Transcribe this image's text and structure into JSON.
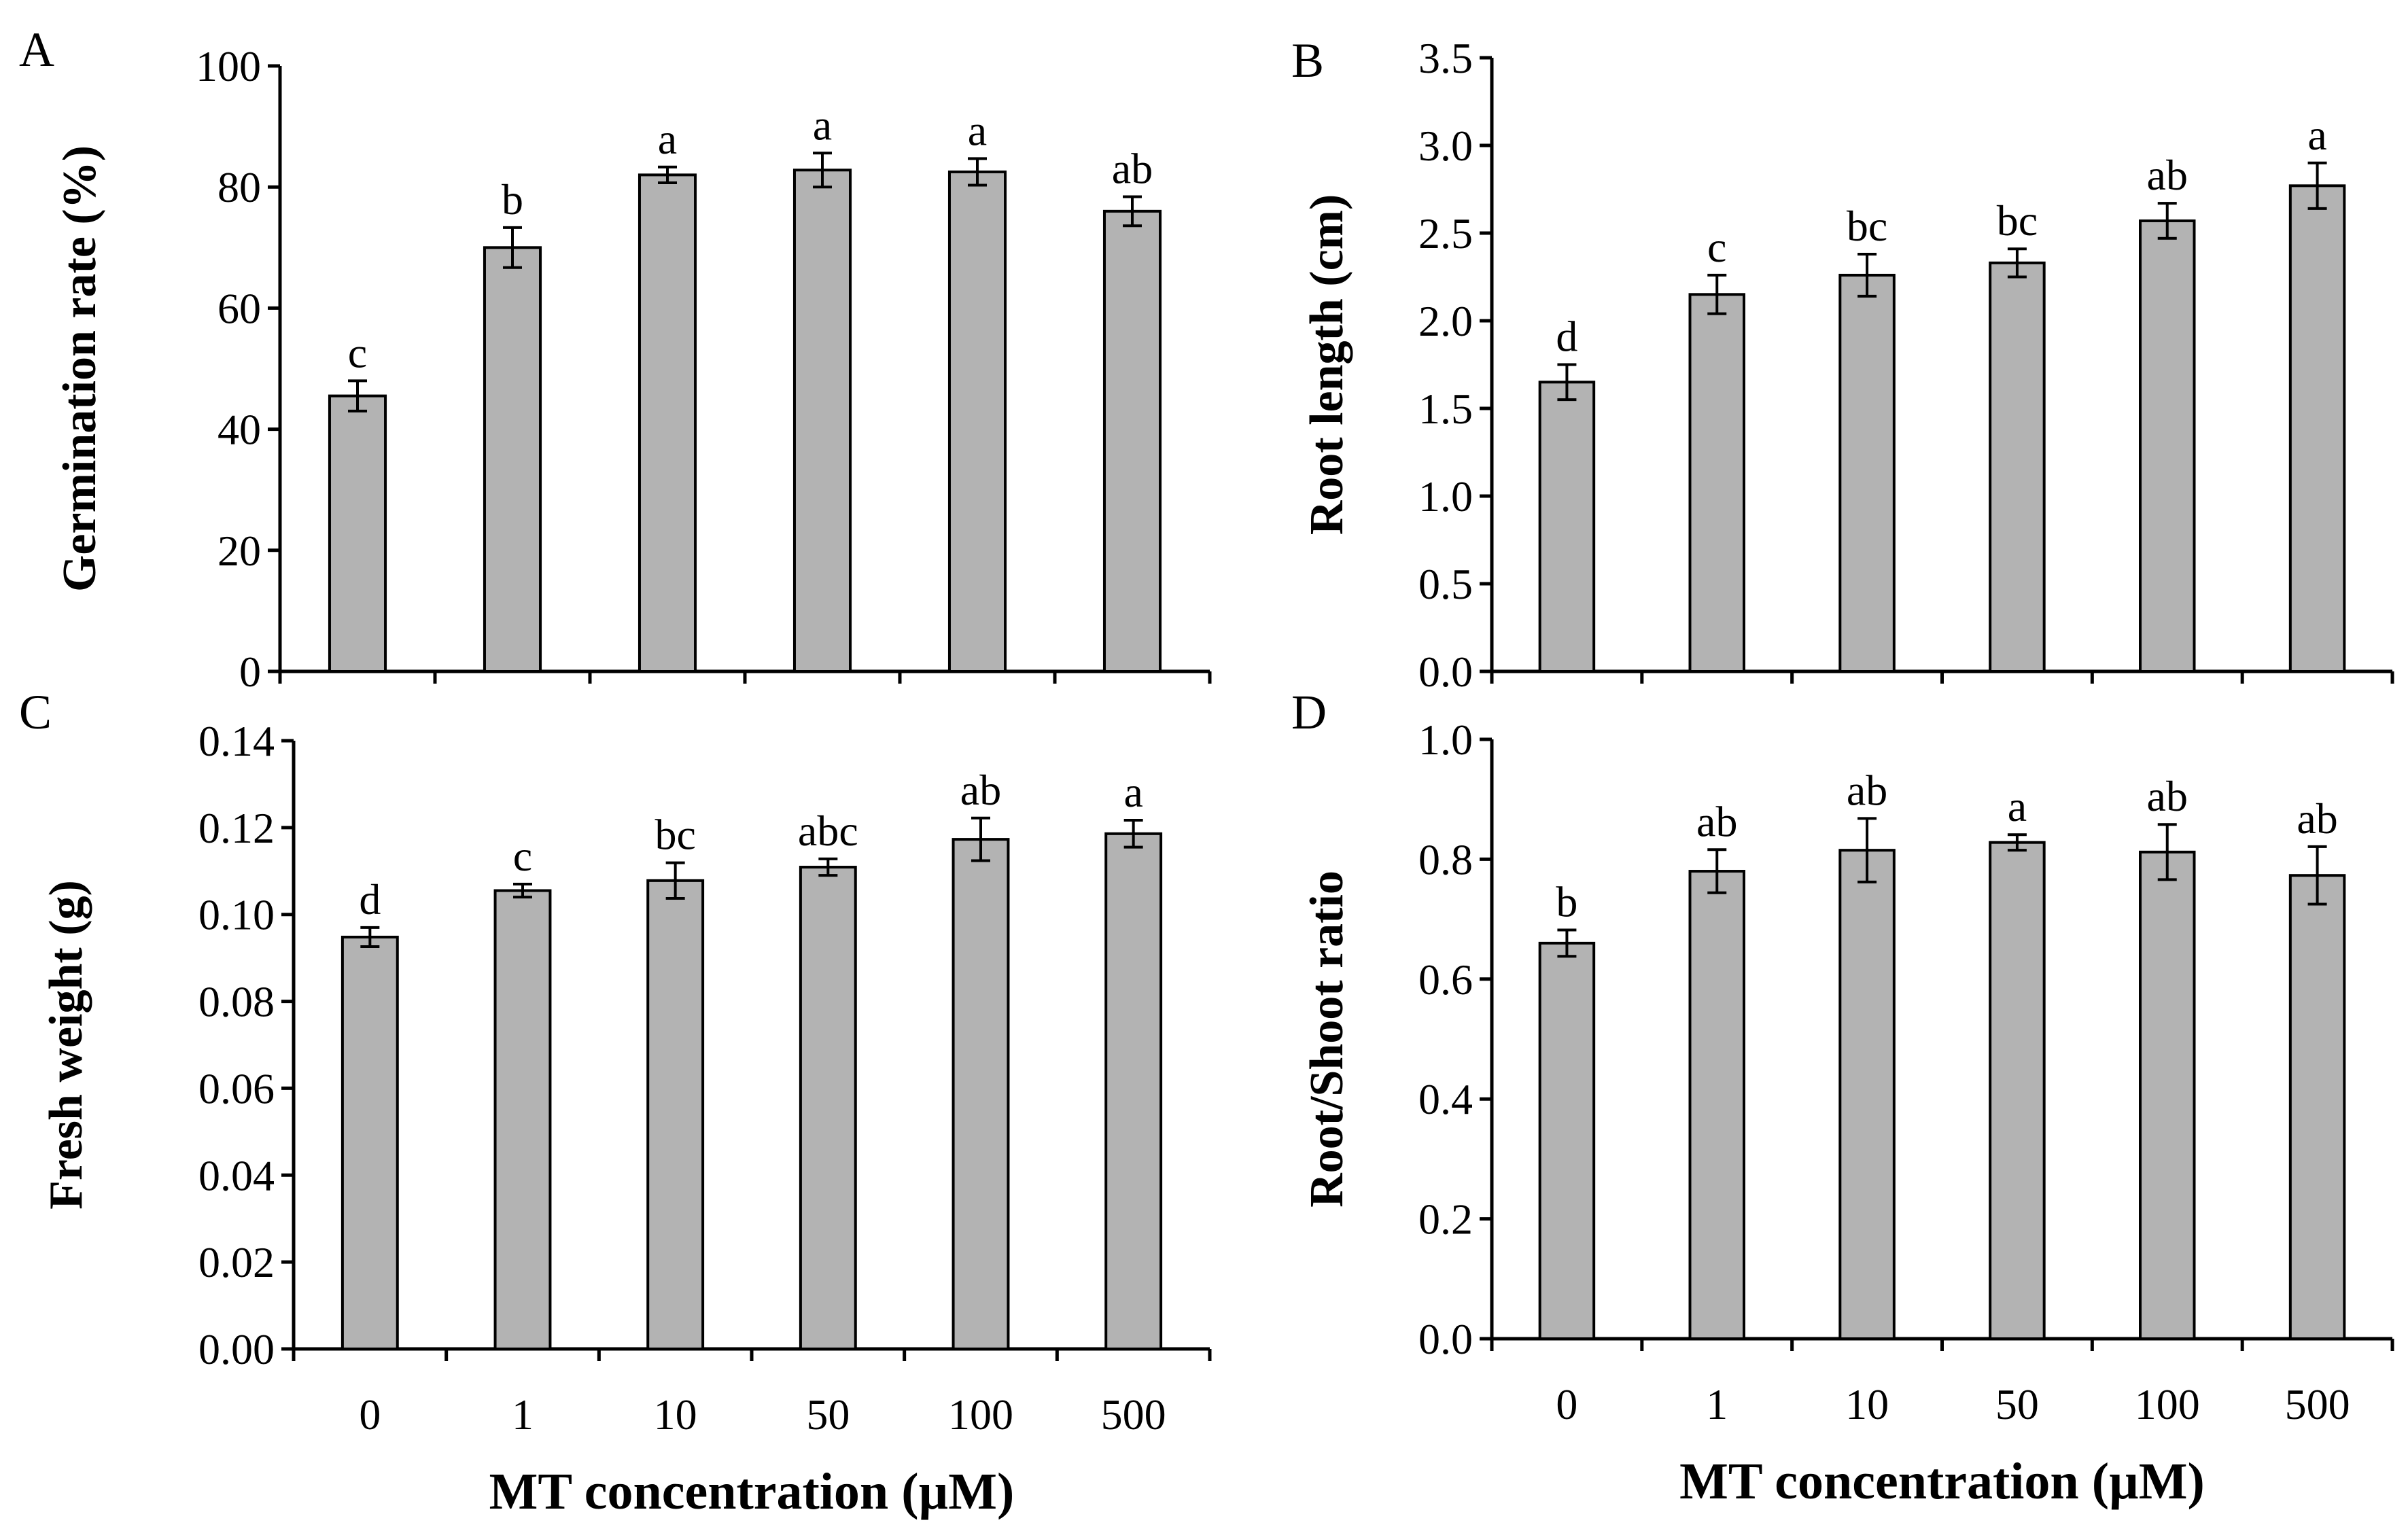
{
  "figure": {
    "xlabel": "MT concentration (µM)",
    "colors": {
      "bar_fill": "#b3b3b3",
      "stroke": "#000000"
    }
  },
  "chart_data": [
    {
      "id": "A",
      "panel": "A",
      "type": "bar",
      "categories": [
        "0",
        "1",
        "10",
        "50",
        "100",
        "500"
      ],
      "values": [
        45.5,
        70.0,
        82.0,
        82.8,
        82.5,
        76.0
      ],
      "errors": [
        2.5,
        3.3,
        1.3,
        2.8,
        2.2,
        2.4
      ],
      "labels": [
        "c",
        "b",
        "a",
        "a",
        "a",
        "ab"
      ],
      "ylabel": "Germination rate (%)",
      "xlabel": "",
      "ylim": [
        0,
        100
      ],
      "yticks": [
        "0",
        "20",
        "40",
        "60",
        "80",
        "100"
      ],
      "grid": false
    },
    {
      "id": "B",
      "panel": "B",
      "type": "bar",
      "categories": [
        "0",
        "1",
        "10",
        "50",
        "100",
        "500"
      ],
      "values": [
        1.65,
        2.15,
        2.26,
        2.33,
        2.57,
        2.77
      ],
      "errors": [
        0.1,
        0.11,
        0.12,
        0.08,
        0.1,
        0.13
      ],
      "labels": [
        "d",
        "c",
        "bc",
        "bc",
        "ab",
        "a"
      ],
      "ylabel": "Root length (cm)",
      "xlabel": "",
      "ylim": [
        0,
        3.5
      ],
      "yticks": [
        "0.0",
        "0.5",
        "1.0",
        "1.5",
        "2.0",
        "2.5",
        "3.0",
        "3.5"
      ],
      "grid": false
    },
    {
      "id": "C",
      "panel": "C",
      "type": "bar",
      "categories": [
        "0",
        "1",
        "10",
        "50",
        "100",
        "500"
      ],
      "values": [
        0.0948,
        0.1055,
        0.1078,
        0.1109,
        0.1173,
        0.1186
      ],
      "errors": [
        0.0022,
        0.0015,
        0.0041,
        0.0019,
        0.0049,
        0.0031
      ],
      "labels": [
        "d",
        "c",
        "bc",
        "abc",
        "ab",
        "a"
      ],
      "ylabel": "Fresh weight (g)",
      "xlabel": "MT concentration (µM)",
      "ylim": [
        0,
        0.14
      ],
      "yticks": [
        "0.00",
        "0.02",
        "0.04",
        "0.06",
        "0.08",
        "0.10",
        "0.12",
        "0.14"
      ],
      "grid": false
    },
    {
      "id": "D",
      "panel": "D",
      "type": "bar",
      "categories": [
        "0",
        "1",
        "10",
        "50",
        "100",
        "500"
      ],
      "values": [
        0.66,
        0.78,
        0.815,
        0.828,
        0.812,
        0.773
      ],
      "errors": [
        0.022,
        0.036,
        0.053,
        0.013,
        0.046,
        0.048
      ],
      "labels": [
        "b",
        "ab",
        "ab",
        "a",
        "ab",
        "ab"
      ],
      "ylabel": "Root/Shoot ratio",
      "xlabel": "MT concentration (µM)",
      "ylim": [
        0,
        1.0
      ],
      "yticks": [
        "0.0",
        "0.2",
        "0.4",
        "0.6",
        "0.8",
        "1.0"
      ],
      "grid": false
    }
  ]
}
